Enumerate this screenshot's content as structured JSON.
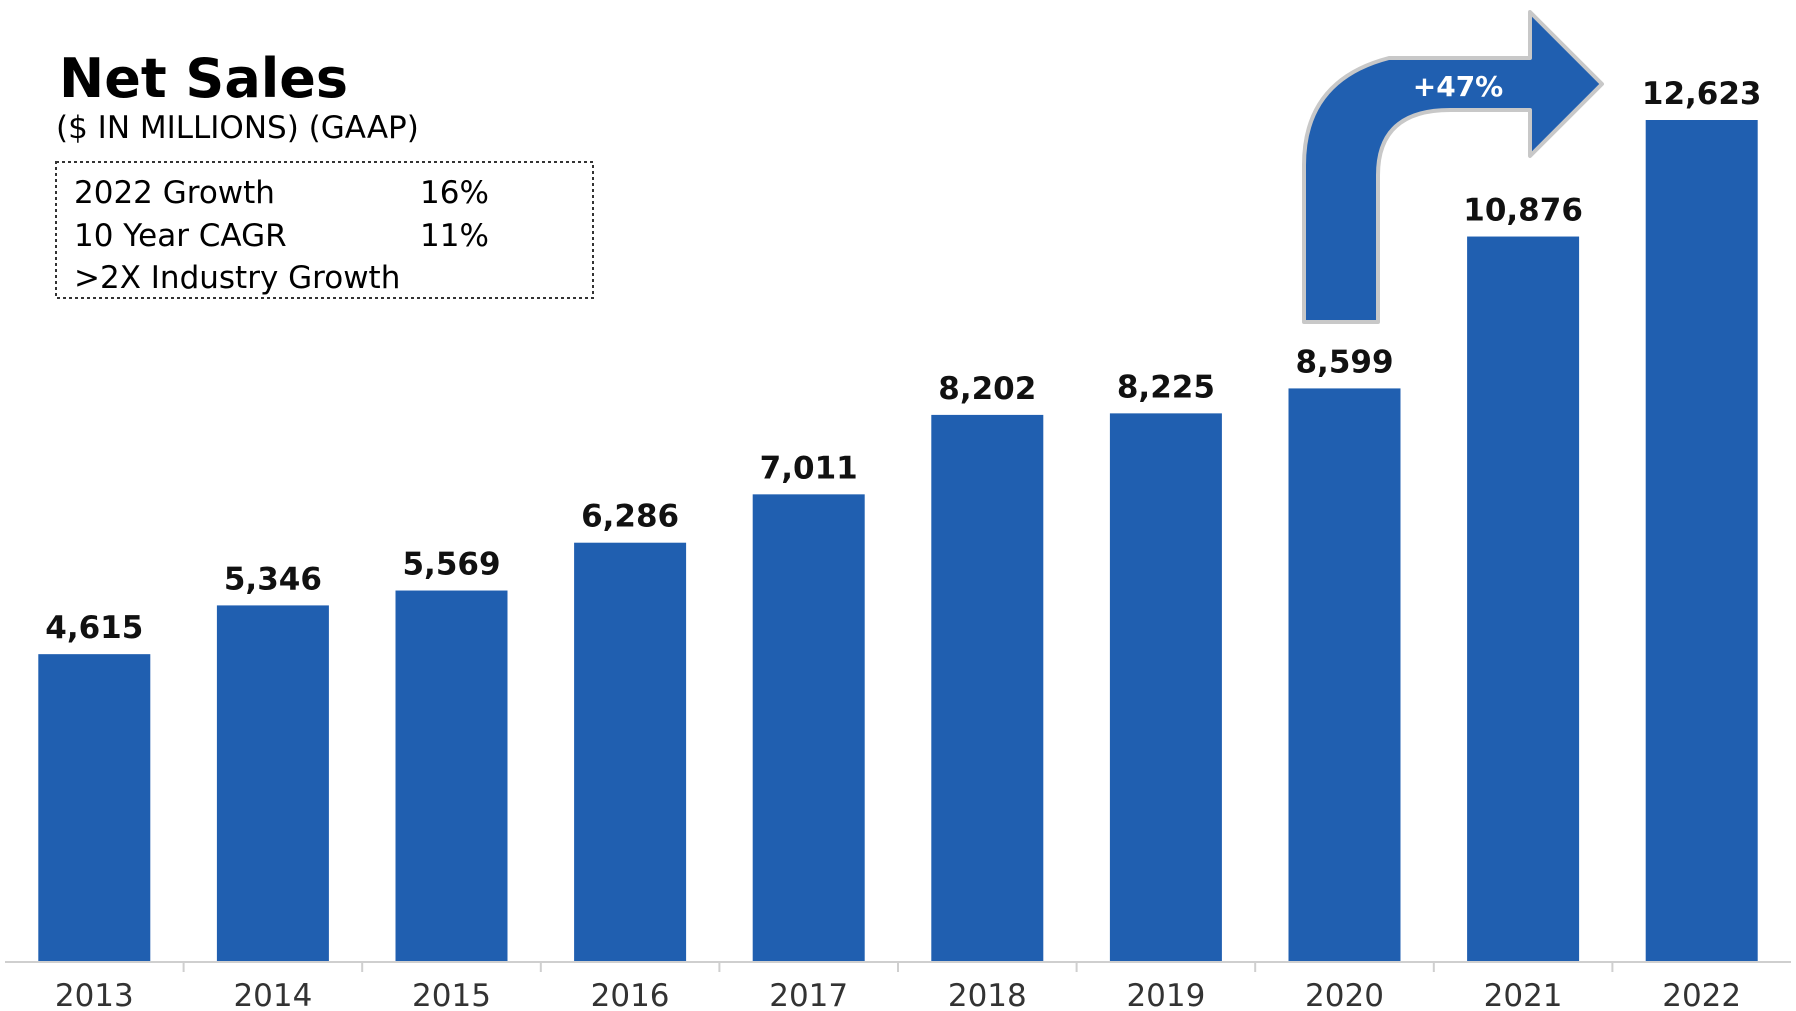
{
  "chart_data": {
    "type": "bar",
    "title": "Net Sales",
    "subtitle": "($ IN MILLIONS) (GAAP)",
    "categories": [
      "2013",
      "2014",
      "2015",
      "2016",
      "2017",
      "2018",
      "2019",
      "2020",
      "2021",
      "2022"
    ],
    "values": [
      4615,
      5346,
      5569,
      6286,
      7011,
      8202,
      8225,
      8599,
      10876,
      12623
    ],
    "value_labels": [
      "4,615",
      "5,346",
      "5,569",
      "6,286",
      "7,011",
      "8,202",
      "8,225",
      "8,599",
      "10,876",
      "12,623"
    ],
    "ylim": [
      0,
      13000
    ],
    "grid": false,
    "bar_color": "#205FB0",
    "annotation": {
      "label": "+47%",
      "from_category": "2020",
      "to_category": "2022",
      "color": "#205FB0"
    },
    "stats_box": [
      {
        "label": "2022 Growth",
        "value": "16%"
      },
      {
        "label": "10 Year CAGR",
        "value": "11%"
      },
      {
        "label": ">2X Industry Growth",
        "value": ""
      }
    ]
  }
}
